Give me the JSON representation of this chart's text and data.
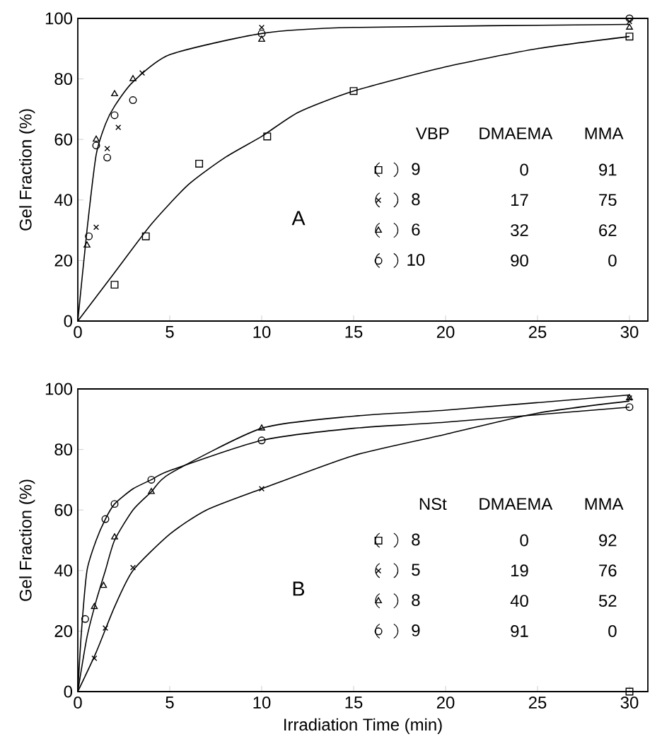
{
  "chart_data": [
    {
      "type": "scatter",
      "ylabel": "Gel Fraction       (%)",
      "xlim": [
        0,
        31
      ],
      "ylim": [
        0,
        100
      ],
      "xticks": [
        0,
        5,
        10,
        15,
        20,
        25,
        30
      ],
      "yticks": [
        0,
        20,
        40,
        60,
        80,
        100
      ],
      "grid": false,
      "legend": "right",
      "annotations": [
        "A",
        "VBP",
        "DMAEMA",
        "MMA",
        "0",
        "91",
        "17",
        "75",
        "32",
        "62",
        "90",
        "0"
      ],
      "series": [
        {
          "name": "9",
          "marker": "square",
          "color": "#000000",
          "x": [
            2.0,
            3.7,
            6.6,
            10.3,
            15,
            30
          ],
          "values": [
            12,
            28,
            52,
            61,
            76,
            94
          ]
        },
        {
          "name": "8",
          "marker": "cross",
          "color": "#000000",
          "x": [
            1.0,
            1.6,
            2.2,
            3.5,
            10,
            30
          ],
          "values": [
            31,
            57,
            64,
            82,
            97,
            99
          ]
        },
        {
          "name": "6",
          "marker": "triangle",
          "color": "#000000",
          "x": [
            0.5,
            1.0,
            2.0,
            3.0,
            10,
            30
          ],
          "values": [
            25,
            60,
            75,
            80,
            93,
            97
          ]
        },
        {
          "name": "10",
          "marker": "circle",
          "color": "#000000",
          "x": [
            0.6,
            1.0,
            1.6,
            2.0,
            3.0,
            10,
            30
          ],
          "values": [
            28,
            58,
            54,
            68,
            73,
            95,
            100
          ]
        },
        {
          "type": "line",
          "marker": "none",
          "color": "#000000",
          "x": [
            0,
            0.5,
            1,
            1.5,
            2,
            3,
            5,
            10,
            15,
            30
          ],
          "values": [
            0,
            30,
            55,
            65,
            71,
            79,
            88,
            95,
            97,
            98
          ]
        },
        {
          "type": "line",
          "marker": "none",
          "color": "#000000",
          "x": [
            0,
            2,
            4,
            6,
            8,
            10,
            12,
            15,
            20,
            25,
            30
          ],
          "values": [
            0,
            16,
            32,
            45,
            54,
            61,
            69,
            76,
            84,
            90,
            94
          ]
        }
      ]
    },
    {
      "type": "scatter",
      "xlabel": "Irradiation Time    (min)",
      "ylabel": "Gel Fraction       (%)",
      "xlim": [
        0,
        31
      ],
      "ylim": [
        0,
        100
      ],
      "xticks": [
        0,
        5,
        10,
        15,
        20,
        25,
        30
      ],
      "yticks": [
        0,
        20,
        40,
        60,
        80,
        100
      ],
      "grid": false,
      "legend": "right",
      "annotations": [
        "B",
        "NSt",
        "DMAEMA",
        "MMA",
        "0",
        "92",
        "19",
        "76",
        "40",
        "52",
        "91",
        "0"
      ],
      "series": [
        {
          "name": "8",
          "marker": "square",
          "color": "#000000",
          "x": [
            30
          ],
          "values": [
            0
          ]
        },
        {
          "name": "5",
          "marker": "cross",
          "color": "#000000",
          "x": [
            0.9,
            1.5,
            3,
            10,
            30
          ],
          "values": [
            11,
            21,
            41,
            67,
            97
          ]
        },
        {
          "name": "8",
          "marker": "triangle",
          "color": "#000000",
          "x": [
            0.9,
            1.4,
            2,
            4,
            10,
            30
          ],
          "values": [
            28,
            35,
            51,
            66,
            87,
            97
          ]
        },
        {
          "name": "9",
          "marker": "circle",
          "color": "#000000",
          "x": [
            0.4,
            1.5,
            2,
            4,
            10,
            30
          ],
          "values": [
            24,
            57,
            62,
            70,
            83,
            94
          ]
        },
        {
          "type": "line",
          "marker": "none",
          "color": "#000000",
          "x": [
            0,
            0.2,
            0.5,
            1,
            1.5,
            2,
            3,
            4,
            5,
            10,
            15,
            20,
            30
          ],
          "values": [
            0,
            20,
            40,
            50,
            57,
            62,
            67,
            70,
            73,
            83,
            87,
            89,
            94
          ]
        },
        {
          "type": "line",
          "marker": "none",
          "color": "#000000",
          "x": [
            0,
            0.5,
            1,
            1.5,
            2,
            3,
            4,
            5,
            10,
            15,
            20,
            30
          ],
          "values": [
            0,
            18,
            30,
            40,
            50,
            60,
            66,
            72,
            87,
            91,
            93,
            98
          ]
        },
        {
          "type": "line",
          "marker": "none",
          "color": "#000000",
          "x": [
            0,
            1,
            2,
            3,
            5,
            7,
            10,
            15,
            20,
            25,
            30
          ],
          "values": [
            0,
            13,
            28,
            40,
            52,
            60,
            67,
            78,
            85,
            92,
            96
          ]
        }
      ]
    }
  ]
}
